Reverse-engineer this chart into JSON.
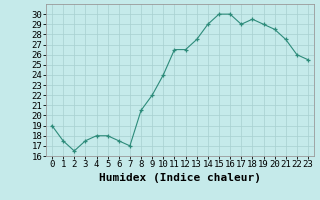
{
  "x": [
    0,
    1,
    2,
    3,
    4,
    5,
    6,
    7,
    8,
    9,
    10,
    11,
    12,
    13,
    14,
    15,
    16,
    17,
    18,
    19,
    20,
    21,
    22,
    23
  ],
  "y": [
    19,
    17.5,
    16.5,
    17.5,
    18,
    18,
    17.5,
    17,
    20.5,
    22,
    24,
    26.5,
    26.5,
    27.5,
    29,
    30,
    30,
    29,
    29.5,
    29,
    28.5,
    27.5,
    26,
    25.5
  ],
  "line_color": "#2d8b7a",
  "marker_color": "#2d8b7a",
  "bg_color": "#c5eaea",
  "grid_color": "#a8d0d0",
  "xlabel": "Humidex (Indice chaleur)",
  "xlim": [
    -0.5,
    23.5
  ],
  "ylim": [
    16,
    31
  ],
  "yticks": [
    16,
    17,
    18,
    19,
    20,
    21,
    22,
    23,
    24,
    25,
    26,
    27,
    28,
    29,
    30
  ],
  "xticks": [
    0,
    1,
    2,
    3,
    4,
    5,
    6,
    7,
    8,
    9,
    10,
    11,
    12,
    13,
    14,
    15,
    16,
    17,
    18,
    19,
    20,
    21,
    22,
    23
  ],
  "tick_fontsize": 6.5,
  "xlabel_fontsize": 8
}
